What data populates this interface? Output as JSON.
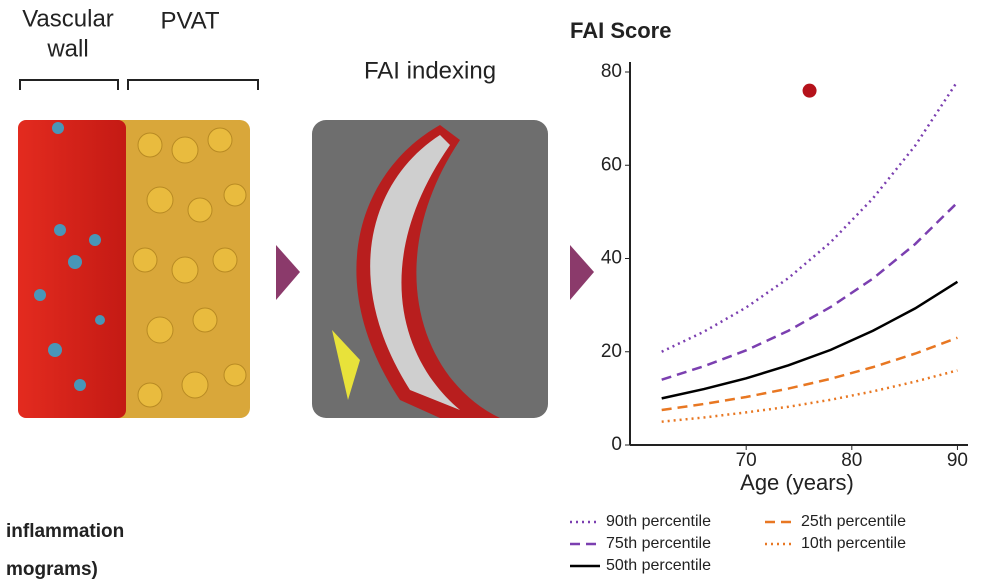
{
  "labels": {
    "vascular_wall": [
      "Vascular",
      "wall"
    ],
    "pvat": "PVAT",
    "fai_indexing": "FAI indexing",
    "caption": [
      "inflammation",
      "mograms)"
    ]
  },
  "chart_data": {
    "type": "line",
    "title": "FAI Score",
    "xlabel": "Age (years)",
    "x": [
      62,
      66,
      70,
      74,
      78,
      82,
      86,
      90
    ],
    "series": [
      {
        "name": "90th percentile",
        "color": "#7b3fb0",
        "dash": "dotted",
        "values": [
          20,
          24.3,
          29.5,
          35.8,
          43.5,
          52.9,
          64.2,
          78
        ]
      },
      {
        "name": "75th percentile",
        "color": "#7b3fb0",
        "dash": "dashed",
        "values": [
          14,
          16.9,
          20.3,
          24.5,
          29.6,
          35.7,
          43.1,
          52
        ]
      },
      {
        "name": "50th percentile",
        "color": "#000000",
        "dash": "solid",
        "values": [
          10,
          12.0,
          14.3,
          17.1,
          20.4,
          24.5,
          29.3,
          35
        ]
      },
      {
        "name": "25th percentile",
        "color": "#e87722",
        "dash": "dashed",
        "values": [
          7.5,
          8.8,
          10.3,
          12.1,
          14.2,
          16.7,
          19.6,
          23
        ]
      },
      {
        "name": "10th percentile",
        "color": "#e87722",
        "dash": "dotted",
        "values": [
          5,
          5.9,
          7.0,
          8.2,
          9.7,
          11.5,
          13.6,
          16
        ]
      }
    ],
    "points": [
      {
        "x": 76,
        "y": 76,
        "color": "#b5121b"
      }
    ],
    "xlim": [
      59,
      91
    ],
    "ylim": [
      0,
      80
    ],
    "xticks": [
      70,
      80,
      90
    ],
    "yticks": [
      0,
      20,
      40,
      60,
      80
    ]
  }
}
